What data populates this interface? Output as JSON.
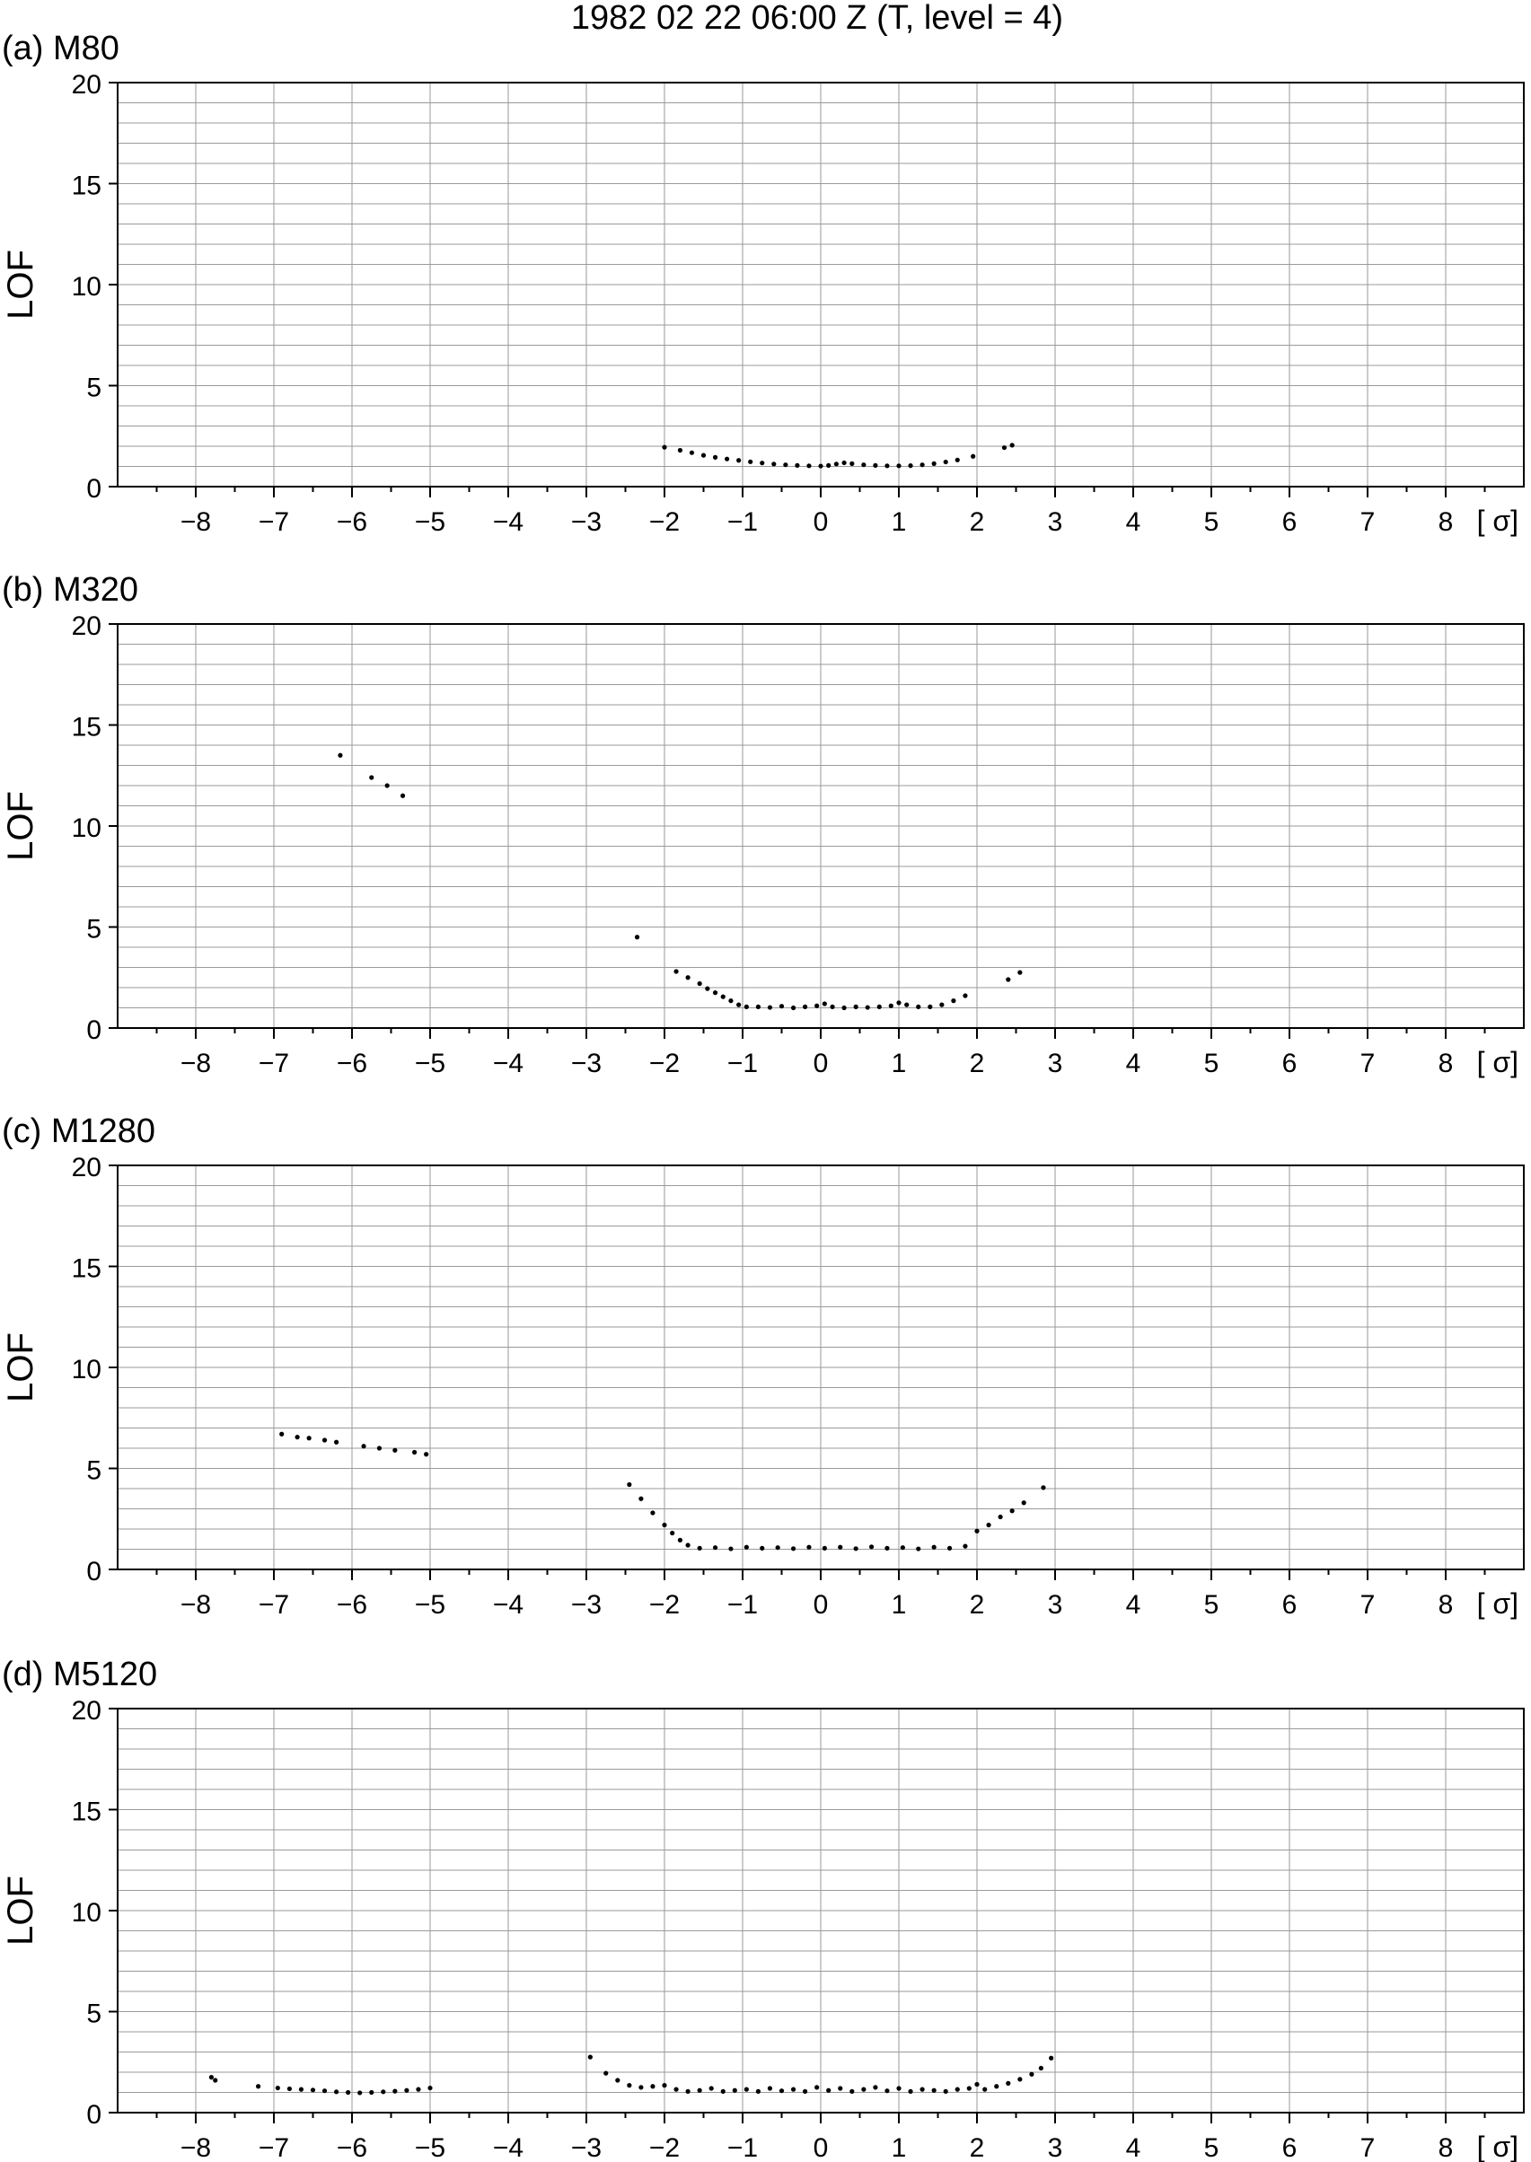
{
  "title": "1982 02 22 06:00  Z (T, level = 4)",
  "colors": {
    "grid": "#9a9a9a",
    "axis": "#000000",
    "points": "#000000",
    "text": "#000000"
  },
  "chart_data": [
    {
      "type": "scatter",
      "label": "(a) M80",
      "ylabel": "LOF",
      "xunit": "[ σ]",
      "xlim": [
        -9,
        9
      ],
      "ylim": [
        0,
        20
      ],
      "xticks": [
        -8,
        -7,
        -6,
        -5,
        -4,
        -3,
        -2,
        -1,
        0,
        1,
        2,
        3,
        4,
        5,
        6,
        7,
        8
      ],
      "yticks": [
        0,
        5,
        10,
        15,
        20
      ],
      "grid": true,
      "points": [
        [
          -2.0,
          1.95
        ],
        [
          -1.8,
          1.8
        ],
        [
          -1.65,
          1.68
        ],
        [
          -1.5,
          1.55
        ],
        [
          -1.35,
          1.45
        ],
        [
          -1.2,
          1.37
        ],
        [
          -1.05,
          1.3
        ],
        [
          -0.9,
          1.23
        ],
        [
          -0.75,
          1.17
        ],
        [
          -0.6,
          1.12
        ],
        [
          -0.45,
          1.08
        ],
        [
          -0.3,
          1.05
        ],
        [
          -0.15,
          1.03
        ],
        [
          0.0,
          1.02
        ],
        [
          0.1,
          1.05
        ],
        [
          0.2,
          1.12
        ],
        [
          0.3,
          1.18
        ],
        [
          0.4,
          1.14
        ],
        [
          0.55,
          1.08
        ],
        [
          0.7,
          1.05
        ],
        [
          0.85,
          1.03
        ],
        [
          1.0,
          1.03
        ],
        [
          1.15,
          1.04
        ],
        [
          1.3,
          1.08
        ],
        [
          1.45,
          1.14
        ],
        [
          1.6,
          1.22
        ],
        [
          1.75,
          1.32
        ],
        [
          1.95,
          1.5
        ],
        [
          2.35,
          1.93
        ],
        [
          2.45,
          2.05
        ]
      ]
    },
    {
      "type": "scatter",
      "label": "(b) M320",
      "ylabel": "LOF",
      "xunit": "[ σ]",
      "xlim": [
        -9,
        9
      ],
      "ylim": [
        0,
        20
      ],
      "xticks": [
        -8,
        -7,
        -6,
        -5,
        -4,
        -3,
        -2,
        -1,
        0,
        1,
        2,
        3,
        4,
        5,
        6,
        7,
        8
      ],
      "yticks": [
        0,
        5,
        10,
        15,
        20
      ],
      "grid": true,
      "points": [
        [
          -6.15,
          13.5
        ],
        [
          -5.75,
          12.4
        ],
        [
          -5.55,
          12.0
        ],
        [
          -5.35,
          11.5
        ],
        [
          -2.35,
          4.5
        ],
        [
          -1.85,
          2.8
        ],
        [
          -1.7,
          2.5
        ],
        [
          -1.55,
          2.2
        ],
        [
          -1.45,
          1.95
        ],
        [
          -1.35,
          1.75
        ],
        [
          -1.25,
          1.55
        ],
        [
          -1.15,
          1.35
        ],
        [
          -1.05,
          1.15
        ],
        [
          -0.95,
          1.05
        ],
        [
          -0.8,
          1.05
        ],
        [
          -0.65,
          1.02
        ],
        [
          -0.5,
          1.08
        ],
        [
          -0.35,
          1.0
        ],
        [
          -0.2,
          1.05
        ],
        [
          -0.05,
          1.1
        ],
        [
          0.05,
          1.2
        ],
        [
          0.15,
          1.05
        ],
        [
          0.3,
          1.0
        ],
        [
          0.45,
          1.05
        ],
        [
          0.6,
          1.02
        ],
        [
          0.75,
          1.05
        ],
        [
          0.9,
          1.1
        ],
        [
          1.0,
          1.25
        ],
        [
          1.1,
          1.15
        ],
        [
          1.25,
          1.05
        ],
        [
          1.4,
          1.05
        ],
        [
          1.55,
          1.15
        ],
        [
          1.7,
          1.35
        ],
        [
          1.85,
          1.6
        ],
        [
          2.4,
          2.4
        ],
        [
          2.55,
          2.75
        ]
      ]
    },
    {
      "type": "scatter",
      "label": "(c) M1280",
      "ylabel": "LOF",
      "xunit": "[ σ]",
      "xlim": [
        -9,
        9
      ],
      "ylim": [
        0,
        20
      ],
      "xticks": [
        -8,
        -7,
        -6,
        -5,
        -4,
        -3,
        -2,
        -1,
        0,
        1,
        2,
        3,
        4,
        5,
        6,
        7,
        8
      ],
      "yticks": [
        0,
        5,
        10,
        15,
        20
      ],
      "grid": true,
      "points": [
        [
          -6.9,
          6.7
        ],
        [
          -6.7,
          6.55
        ],
        [
          -6.55,
          6.5
        ],
        [
          -6.35,
          6.4
        ],
        [
          -6.2,
          6.3
        ],
        [
          -5.85,
          6.1
        ],
        [
          -5.65,
          6.0
        ],
        [
          -5.45,
          5.9
        ],
        [
          -5.2,
          5.8
        ],
        [
          -5.05,
          5.7
        ],
        [
          -2.45,
          4.2
        ],
        [
          -2.3,
          3.5
        ],
        [
          -2.15,
          2.8
        ],
        [
          -2.0,
          2.2
        ],
        [
          -1.9,
          1.8
        ],
        [
          -1.8,
          1.45
        ],
        [
          -1.7,
          1.2
        ],
        [
          -1.55,
          1.05
        ],
        [
          -1.35,
          1.08
        ],
        [
          -1.15,
          1.02
        ],
        [
          -0.95,
          1.1
        ],
        [
          -0.75,
          1.05
        ],
        [
          -0.55,
          1.08
        ],
        [
          -0.35,
          1.03
        ],
        [
          -0.15,
          1.1
        ],
        [
          0.05,
          1.05
        ],
        [
          0.25,
          1.1
        ],
        [
          0.45,
          1.03
        ],
        [
          0.65,
          1.12
        ],
        [
          0.85,
          1.05
        ],
        [
          1.05,
          1.08
        ],
        [
          1.25,
          1.02
        ],
        [
          1.45,
          1.1
        ],
        [
          1.65,
          1.05
        ],
        [
          1.85,
          1.15
        ],
        [
          2.0,
          1.9
        ],
        [
          2.15,
          2.2
        ],
        [
          2.3,
          2.6
        ],
        [
          2.45,
          2.9
        ],
        [
          2.6,
          3.3
        ],
        [
          2.85,
          4.05
        ]
      ]
    },
    {
      "type": "scatter",
      "label": "(d) M5120",
      "ylabel": "LOF",
      "xunit": "[ σ]",
      "xlim": [
        -9,
        9
      ],
      "ylim": [
        0,
        20
      ],
      "xticks": [
        -8,
        -7,
        -6,
        -5,
        -4,
        -3,
        -2,
        -1,
        0,
        1,
        2,
        3,
        4,
        5,
        6,
        7,
        8
      ],
      "yticks": [
        0,
        5,
        10,
        15,
        20
      ],
      "grid": true,
      "points": [
        [
          -7.8,
          1.75
        ],
        [
          -7.75,
          1.6
        ],
        [
          -7.2,
          1.3
        ],
        [
          -6.95,
          1.22
        ],
        [
          -6.8,
          1.18
        ],
        [
          -6.65,
          1.15
        ],
        [
          -6.5,
          1.12
        ],
        [
          -6.35,
          1.08
        ],
        [
          -6.2,
          1.03
        ],
        [
          -6.05,
          1.0
        ],
        [
          -5.9,
          0.98
        ],
        [
          -5.75,
          1.0
        ],
        [
          -5.6,
          1.03
        ],
        [
          -5.45,
          1.06
        ],
        [
          -5.3,
          1.1
        ],
        [
          -5.15,
          1.15
        ],
        [
          -5.0,
          1.22
        ],
        [
          -2.95,
          2.75
        ],
        [
          -2.75,
          1.95
        ],
        [
          -2.6,
          1.6
        ],
        [
          -2.45,
          1.35
        ],
        [
          -2.3,
          1.25
        ],
        [
          -2.15,
          1.3
        ],
        [
          -2.0,
          1.35
        ],
        [
          -1.85,
          1.15
        ],
        [
          -1.7,
          1.05
        ],
        [
          -1.55,
          1.1
        ],
        [
          -1.4,
          1.2
        ],
        [
          -1.25,
          1.05
        ],
        [
          -1.1,
          1.1
        ],
        [
          -0.95,
          1.15
        ],
        [
          -0.8,
          1.05
        ],
        [
          -0.65,
          1.2
        ],
        [
          -0.5,
          1.08
        ],
        [
          -0.35,
          1.15
        ],
        [
          -0.2,
          1.05
        ],
        [
          -0.05,
          1.25
        ],
        [
          0.1,
          1.1
        ],
        [
          0.25,
          1.2
        ],
        [
          0.4,
          1.05
        ],
        [
          0.55,
          1.15
        ],
        [
          0.7,
          1.25
        ],
        [
          0.85,
          1.08
        ],
        [
          1.0,
          1.2
        ],
        [
          1.15,
          1.05
        ],
        [
          1.3,
          1.15
        ],
        [
          1.45,
          1.1
        ],
        [
          1.6,
          1.05
        ],
        [
          1.75,
          1.15
        ],
        [
          1.9,
          1.2
        ],
        [
          2.0,
          1.4
        ],
        [
          2.1,
          1.15
        ],
        [
          2.25,
          1.3
        ],
        [
          2.4,
          1.45
        ],
        [
          2.55,
          1.65
        ],
        [
          2.7,
          1.9
        ],
        [
          2.82,
          2.2
        ],
        [
          2.95,
          2.7
        ]
      ]
    }
  ]
}
